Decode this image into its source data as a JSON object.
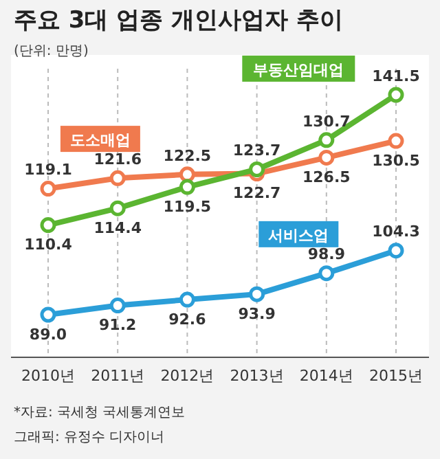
{
  "chart_data": {
    "type": "line",
    "title": "주요 3대 업종 개인사업자 추이",
    "subtitle": "(단위: 만명)",
    "categories": [
      "2010년",
      "2011년",
      "2012년",
      "2013년",
      "2014년",
      "2015년"
    ],
    "series": [
      {
        "name": "도소매업",
        "color": "#f07a4e",
        "values": [
          119.1,
          121.6,
          122.5,
          122.7,
          126.5,
          130.5
        ],
        "value_labels": [
          "119.1",
          "121.6",
          "122.5",
          "122.7",
          "126.5",
          "130.5"
        ]
      },
      {
        "name": "부동산임대업",
        "color": "#5bb531",
        "values": [
          110.4,
          114.4,
          119.5,
          123.7,
          130.7,
          141.5
        ],
        "value_labels": [
          "110.4",
          "114.4",
          "119.5",
          "123.7",
          "130.7",
          "141.5"
        ]
      },
      {
        "name": "서비스업",
        "color": "#2b9ed8",
        "values": [
          89.0,
          91.2,
          92.6,
          93.9,
          98.9,
          104.3
        ],
        "value_labels": [
          "89.0",
          "91.2",
          "92.6",
          "93.9",
          "98.9",
          "104.3"
        ]
      }
    ],
    "grid": "x",
    "marker": "circle",
    "line_style": "solid",
    "annotations": [
      "*자료: 국세청 국세통계연보",
      "그래픽: 유정수 디자이너"
    ]
  }
}
